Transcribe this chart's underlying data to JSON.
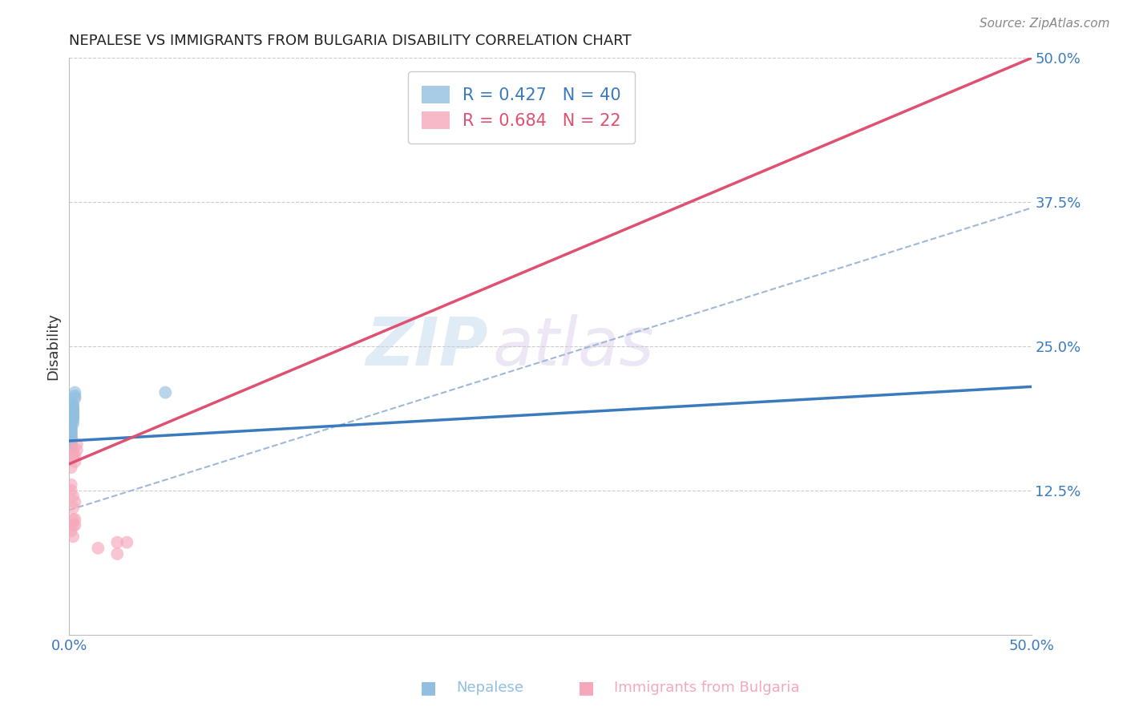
{
  "title": "NEPALESE VS IMMIGRANTS FROM BULGARIA DISABILITY CORRELATION CHART",
  "source": "Source: ZipAtlas.com",
  "ylabel": "Disability",
  "xlim": [
    0.0,
    0.5
  ],
  "ylim": [
    0.0,
    0.5
  ],
  "nepalese_R": 0.427,
  "nepalese_N": 40,
  "bulgaria_R": 0.684,
  "bulgaria_N": 22,
  "nepalese_color": "#92bfe0",
  "bulgaria_color": "#f5a8ba",
  "nepalese_line_color": "#3a7abf",
  "bulgaria_line_color": "#e05070",
  "dashed_line_color": "#a0b8d8",
  "grid_color": "#cccccc",
  "title_color": "#222222",
  "axis_label_color": "#333333",
  "tick_label_color": "#3a7abf",
  "watermark_zip": "ZIP",
  "watermark_atlas": "atlas",
  "nepalese_x": [
    0.001,
    0.002,
    0.002,
    0.003,
    0.001,
    0.001,
    0.002,
    0.001,
    0.002,
    0.001,
    0.003,
    0.001,
    0.002,
    0.001,
    0.001,
    0.002,
    0.002,
    0.002,
    0.001,
    0.001,
    0.002,
    0.003,
    0.001,
    0.002,
    0.001,
    0.001,
    0.002,
    0.001,
    0.002,
    0.001,
    0.002,
    0.002,
    0.001,
    0.001,
    0.001,
    0.002,
    0.002,
    0.002,
    0.001,
    0.05
  ],
  "nepalese_y": [
    0.185,
    0.195,
    0.2,
    0.21,
    0.175,
    0.17,
    0.19,
    0.178,
    0.193,
    0.168,
    0.205,
    0.182,
    0.197,
    0.165,
    0.176,
    0.188,
    0.192,
    0.198,
    0.17,
    0.179,
    0.191,
    0.207,
    0.174,
    0.186,
    0.166,
    0.172,
    0.194,
    0.169,
    0.196,
    0.171,
    0.189,
    0.187,
    0.177,
    0.167,
    0.173,
    0.19,
    0.183,
    0.195,
    0.163,
    0.21
  ],
  "bulgaria_x": [
    0.001,
    0.001,
    0.002,
    0.002,
    0.003,
    0.003,
    0.004,
    0.004,
    0.003,
    0.002,
    0.001,
    0.002,
    0.003,
    0.002,
    0.001,
    0.002,
    0.003,
    0.002,
    0.025,
    0.025,
    0.015,
    0.03
  ],
  "bulgaria_y": [
    0.145,
    0.13,
    0.155,
    0.16,
    0.155,
    0.15,
    0.165,
    0.16,
    0.095,
    0.1,
    0.09,
    0.085,
    0.1,
    0.095,
    0.125,
    0.12,
    0.115,
    0.11,
    0.08,
    0.07,
    0.075,
    0.08
  ],
  "figsize": [
    14.06,
    8.92
  ],
  "dpi": 100
}
